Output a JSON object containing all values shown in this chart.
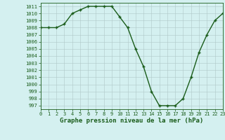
{
  "x": [
    0,
    1,
    2,
    3,
    4,
    5,
    6,
    7,
    8,
    9,
    10,
    11,
    12,
    13,
    14,
    15,
    16,
    17,
    18,
    19,
    20,
    21,
    22,
    23
  ],
  "y": [
    1008,
    1008,
    1008,
    1008.5,
    1010,
    1010.5,
    1011,
    1011,
    1011,
    1011,
    1009.5,
    1008,
    1005,
    1002.5,
    999,
    997,
    997,
    997,
    998,
    1001,
    1004.5,
    1007,
    1009,
    1010
  ],
  "line_color": "#1a5c1a",
  "marker": "+",
  "marker_color": "#1a5c1a",
  "bg_color": "#d4f0f0",
  "grid_color": "#b0c8c8",
  "axis_label_color": "#1a5c1a",
  "tick_color": "#1a5c1a",
  "xlabel": "Graphe pression niveau de la mer (hPa)",
  "ylim_min": 996.5,
  "ylim_max": 1011.5,
  "xlim_min": 0,
  "xlim_max": 23,
  "yticks": [
    997,
    998,
    999,
    1000,
    1001,
    1002,
    1003,
    1004,
    1005,
    1006,
    1007,
    1008,
    1009,
    1010,
    1011
  ],
  "xticks": [
    0,
    1,
    2,
    3,
    4,
    5,
    6,
    7,
    8,
    9,
    10,
    11,
    12,
    13,
    14,
    15,
    16,
    17,
    18,
    19,
    20,
    21,
    22,
    23
  ],
  "xlabel_fontsize": 6.5,
  "tick_fontsize": 5.0,
  "linewidth": 1.0,
  "markersize": 3.5,
  "markeredgewidth": 1.0
}
